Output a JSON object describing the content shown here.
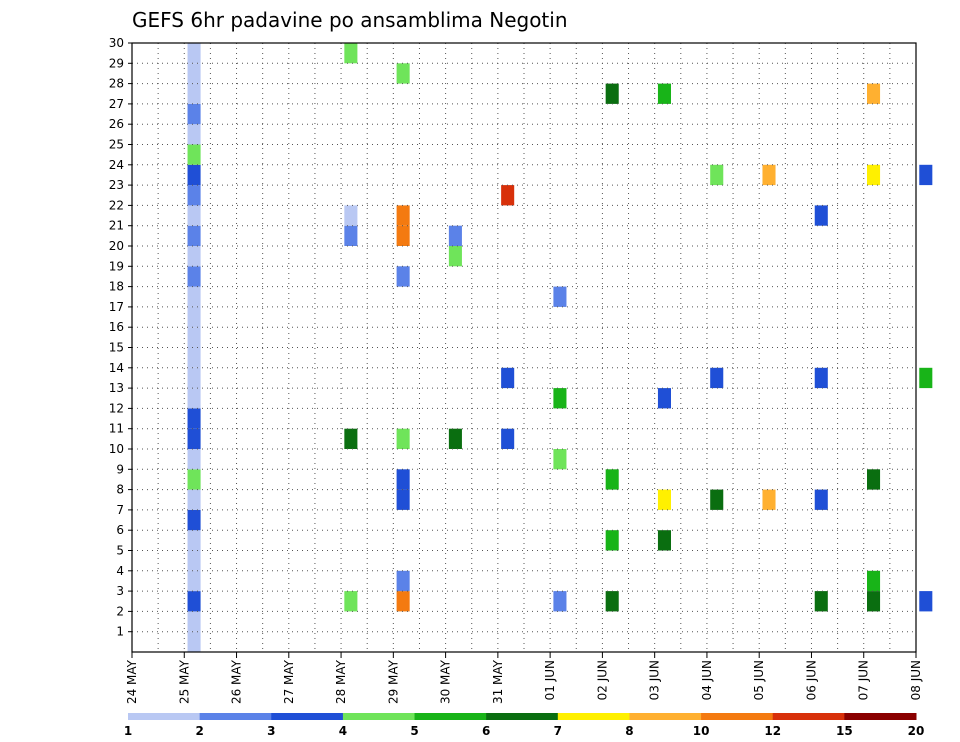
{
  "chart_data": {
    "type": "heatmap",
    "title": "GEFS 6hr padavine po ansamblima Negotin",
    "xlabel": "",
    "ylabel": "",
    "x_tick_labels": [
      "24 MAY",
      "25 MAY",
      "26 MAY",
      "27 MAY",
      "28 MAY",
      "29 MAY",
      "30 MAY",
      "31 MAY",
      "01 JUN",
      "02 JUN",
      "03 JUN",
      "04 JUN",
      "05 JUN",
      "06 JUN",
      "07 JUN",
      "08 JUN"
    ],
    "x_range_days": [
      0,
      15
    ],
    "y_tick_labels": [
      "1",
      "2",
      "3",
      "4",
      "5",
      "6",
      "7",
      "8",
      "9",
      "10",
      "11",
      "12",
      "13",
      "14",
      "15",
      "16",
      "17",
      "18",
      "19",
      "20",
      "21",
      "22",
      "23",
      "24",
      "25",
      "26",
      "27",
      "28",
      "29",
      "30"
    ],
    "y_range": [
      0,
      30
    ],
    "grid": true,
    "legend_position": "bottom",
    "colorbar": {
      "labels": [
        "1",
        "2",
        "3",
        "4",
        "5",
        "6",
        "7",
        "8",
        "10",
        "12",
        "15",
        "20"
      ],
      "colors": [
        "#b9c8f3",
        "#5b82e8",
        "#1f4fd6",
        "#6fe45a",
        "#18b418",
        "#0a6e10",
        "#fff000",
        "#ffb030",
        "#f47a10",
        "#d8300a",
        "#8a0000"
      ]
    },
    "values": [
      [
        25,
        1,
        "#b9c8f3"
      ],
      [
        25,
        2,
        "#b9c8f3"
      ],
      [
        25,
        3,
        "#1f4fd6"
      ],
      [
        25,
        4,
        "#b9c8f3"
      ],
      [
        25,
        5,
        "#b9c8f3"
      ],
      [
        25,
        6,
        "#b9c8f3"
      ],
      [
        25,
        7,
        "#1f4fd6"
      ],
      [
        25,
        8,
        "#b9c8f3"
      ],
      [
        25,
        9,
        "#6fe45a"
      ],
      [
        25,
        10,
        "#b9c8f3"
      ],
      [
        25,
        11,
        "#1f4fd6"
      ],
      [
        25,
        12,
        "#1f4fd6"
      ],
      [
        25,
        13,
        "#b9c8f3"
      ],
      [
        25,
        14,
        "#b9c8f3"
      ],
      [
        25,
        15,
        "#b9c8f3"
      ],
      [
        25,
        16,
        "#b9c8f3"
      ],
      [
        25,
        17,
        "#b9c8f3"
      ],
      [
        25,
        18,
        "#b9c8f3"
      ],
      [
        25,
        19,
        "#5b82e8"
      ],
      [
        25,
        20,
        "#b9c8f3"
      ],
      [
        25,
        21,
        "#5b82e8"
      ],
      [
        25,
        22,
        "#b9c8f3"
      ],
      [
        25,
        23,
        "#5b82e8"
      ],
      [
        25,
        24,
        "#1f4fd6"
      ],
      [
        25,
        25,
        "#6fe45a"
      ],
      [
        25,
        26,
        "#b9c8f3"
      ],
      [
        25,
        27,
        "#5b82e8"
      ],
      [
        25,
        28,
        "#b9c8f3"
      ],
      [
        25,
        29,
        "#b9c8f3"
      ],
      [
        25,
        30,
        "#b9c8f3"
      ],
      [
        28,
        3,
        "#6fe45a"
      ],
      [
        28,
        11,
        "#0a6e10"
      ],
      [
        28,
        21,
        "#5b82e8"
      ],
      [
        28,
        22,
        "#b9c8f3"
      ],
      [
        28,
        30,
        "#6fe45a"
      ],
      [
        29,
        3,
        "#f47a10"
      ],
      [
        29,
        4,
        "#5b82e8"
      ],
      [
        29,
        8,
        "#1f4fd6"
      ],
      [
        29,
        9,
        "#1f4fd6"
      ],
      [
        29,
        11,
        "#6fe45a"
      ],
      [
        29,
        19,
        "#5b82e8"
      ],
      [
        29,
        21,
        "#f47a10"
      ],
      [
        29,
        22,
        "#f47a10"
      ],
      [
        29,
        29,
        "#6fe45a"
      ],
      [
        30,
        11,
        "#0a6e10"
      ],
      [
        30,
        20,
        "#6fe45a"
      ],
      [
        30,
        21,
        "#5b82e8"
      ],
      [
        31,
        11,
        "#1f4fd6"
      ],
      [
        31,
        14,
        "#1f4fd6"
      ],
      [
        31,
        23,
        "#d8300a"
      ],
      [
        1,
        3,
        "#5b82e8"
      ],
      [
        1,
        10,
        "#6fe45a"
      ],
      [
        1,
        13,
        "#18b418"
      ],
      [
        1,
        18,
        "#5b82e8"
      ],
      [
        2,
        3,
        "#0a6e10"
      ],
      [
        2,
        6,
        "#18b418"
      ],
      [
        2,
        9,
        "#18b418"
      ],
      [
        2,
        28,
        "#0a6e10"
      ],
      [
        3,
        6,
        "#0a6e10"
      ],
      [
        3,
        8,
        "#fff000"
      ],
      [
        3,
        13,
        "#1f4fd6"
      ],
      [
        3,
        28,
        "#18b418"
      ],
      [
        4,
        8,
        "#0a6e10"
      ],
      [
        4,
        14,
        "#1f4fd6"
      ],
      [
        4,
        24,
        "#6fe45a"
      ],
      [
        5,
        8,
        "#ffb030"
      ],
      [
        5,
        24,
        "#ffb030"
      ],
      [
        6,
        3,
        "#0a6e10"
      ],
      [
        6,
        8,
        "#1f4fd6"
      ],
      [
        6,
        14,
        "#1f4fd6"
      ],
      [
        6,
        22,
        "#1f4fd6"
      ],
      [
        7,
        3,
        "#0a6e10"
      ],
      [
        7,
        4,
        "#18b418"
      ],
      [
        7,
        9,
        "#0a6e10"
      ],
      [
        7,
        24,
        "#fff000"
      ],
      [
        7,
        28,
        "#ffb030"
      ],
      [
        8,
        3,
        "#1f4fd6"
      ],
      [
        8,
        14,
        "#18b418"
      ],
      [
        8,
        24,
        "#1f4fd6"
      ]
    ]
  }
}
